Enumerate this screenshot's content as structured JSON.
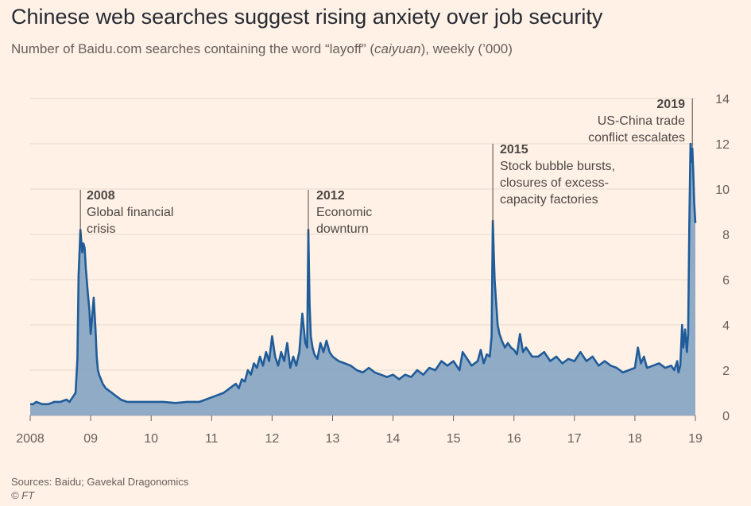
{
  "header": {
    "title": "Chinese web searches suggest rising anxiety over job security",
    "subtitle_pre": "Number of Baidu.com searches containing the word “layoff” (",
    "subtitle_em": "caiyuan",
    "subtitle_post": "), weekly (’000)"
  },
  "footer": {
    "sources": "Sources: Baidu; Gavekal Dragonomics",
    "credit": "© FT"
  },
  "colors": {
    "background": "#fff1e5",
    "line": "#1f5c99",
    "fill": "#8aa6c4",
    "grid": "#e6d9ce"
  },
  "chart_data": {
    "type": "area",
    "title": "Chinese web searches suggest rising anxiety over job security",
    "ylabel": "",
    "xlabel": "",
    "xlim": [
      2008.0,
      2019.0
    ],
    "ylim": [
      0,
      14
    ],
    "y_axis_side": "right",
    "grid": true,
    "x_ticks": [
      {
        "value": 2008,
        "label": "2008"
      },
      {
        "value": 2009,
        "label": "09"
      },
      {
        "value": 2010,
        "label": "10"
      },
      {
        "value": 2011,
        "label": "11"
      },
      {
        "value": 2012,
        "label": "12"
      },
      {
        "value": 2013,
        "label": "13"
      },
      {
        "value": 2014,
        "label": "14"
      },
      {
        "value": 2015,
        "label": "15"
      },
      {
        "value": 2016,
        "label": "16"
      },
      {
        "value": 2017,
        "label": "17"
      },
      {
        "value": 2018,
        "label": "18"
      },
      {
        "value": 2019,
        "label": "19"
      }
    ],
    "y_ticks": [
      {
        "value": 0,
        "label": "0"
      },
      {
        "value": 2,
        "label": "2"
      },
      {
        "value": 4,
        "label": "4"
      },
      {
        "value": 6,
        "label": "6"
      },
      {
        "value": 8,
        "label": "8"
      },
      {
        "value": 10,
        "label": "10"
      },
      {
        "value": 12,
        "label": "12"
      },
      {
        "value": 14,
        "label": "14"
      }
    ],
    "series": [
      {
        "x": [
          2008.0,
          2008.05,
          2008.1,
          2008.2,
          2008.3,
          2008.4,
          2008.5,
          2008.6,
          2008.65,
          2008.7,
          2008.75,
          2008.78,
          2008.8,
          2008.83,
          2008.86,
          2008.88,
          2008.9,
          2008.92,
          2008.95,
          2008.98,
          2009.0,
          2009.02,
          2009.05,
          2009.08,
          2009.1,
          2009.12,
          2009.14,
          2009.17,
          2009.2,
          2009.25,
          2009.3,
          2009.4,
          2009.5,
          2009.6,
          2009.8,
          2010.0,
          2010.2,
          2010.4,
          2010.6,
          2010.8,
          2011.0,
          2011.1,
          2011.2,
          2011.3,
          2011.4,
          2011.45,
          2011.5,
          2011.55,
          2011.6,
          2011.65,
          2011.7,
          2011.75,
          2011.8,
          2011.85,
          2011.9,
          2011.95,
          2012.0,
          2012.05,
          2012.1,
          2012.15,
          2012.2,
          2012.25,
          2012.3,
          2012.35,
          2012.4,
          2012.45,
          2012.5,
          2012.55,
          2012.58,
          2012.6,
          2012.62,
          2012.64,
          2012.67,
          2012.7,
          2012.75,
          2012.8,
          2012.85,
          2012.9,
          2012.95,
          2013.0,
          2013.1,
          2013.2,
          2013.3,
          2013.4,
          2013.5,
          2013.6,
          2013.7,
          2013.8,
          2013.9,
          2014.0,
          2014.1,
          2014.2,
          2014.3,
          2014.4,
          2014.5,
          2014.6,
          2014.7,
          2014.8,
          2014.9,
          2015.0,
          2015.1,
          2015.15,
          2015.2,
          2015.3,
          2015.4,
          2015.45,
          2015.5,
          2015.55,
          2015.6,
          2015.63,
          2015.65,
          2015.68,
          2015.7,
          2015.73,
          2015.76,
          2015.8,
          2015.85,
          2015.9,
          2015.95,
          2016.0,
          2016.05,
          2016.1,
          2016.15,
          2016.2,
          2016.3,
          2016.4,
          2016.5,
          2016.6,
          2016.7,
          2016.8,
          2016.9,
          2017.0,
          2017.1,
          2017.2,
          2017.3,
          2017.4,
          2017.5,
          2017.6,
          2017.7,
          2017.8,
          2017.9,
          2018.0,
          2018.05,
          2018.1,
          2018.15,
          2018.2,
          2018.3,
          2018.4,
          2018.5,
          2018.6,
          2018.65,
          2018.7,
          2018.72,
          2018.75,
          2018.78,
          2018.8,
          2018.83,
          2018.86,
          2018.88,
          2018.9,
          2018.92,
          2018.93,
          2018.95,
          2018.97,
          2018.98,
          2019.0
        ],
        "values": [
          0.5,
          0.5,
          0.6,
          0.5,
          0.5,
          0.6,
          0.6,
          0.7,
          0.6,
          0.8,
          1.0,
          2.5,
          6.2,
          8.2,
          7.2,
          7.6,
          7.4,
          6.5,
          5.5,
          4.6,
          3.6,
          4.2,
          5.2,
          3.8,
          2.6,
          2.0,
          1.8,
          1.6,
          1.4,
          1.2,
          1.1,
          0.9,
          0.7,
          0.6,
          0.6,
          0.6,
          0.6,
          0.55,
          0.6,
          0.6,
          0.8,
          0.9,
          1.0,
          1.2,
          1.4,
          1.2,
          1.6,
          1.5,
          2.0,
          1.8,
          2.3,
          2.1,
          2.6,
          2.2,
          2.8,
          2.4,
          3.5,
          2.6,
          2.2,
          2.8,
          2.4,
          3.2,
          2.1,
          2.6,
          2.2,
          2.8,
          4.5,
          3.2,
          3.0,
          8.2,
          5.0,
          3.5,
          3.0,
          2.7,
          2.5,
          3.2,
          2.8,
          3.3,
          2.8,
          2.6,
          2.4,
          2.3,
          2.2,
          2.0,
          1.9,
          2.1,
          1.9,
          1.8,
          1.7,
          1.8,
          1.6,
          1.8,
          1.7,
          2.0,
          1.8,
          2.1,
          2.0,
          2.4,
          2.2,
          2.4,
          2.0,
          2.8,
          2.6,
          2.2,
          2.4,
          2.9,
          2.3,
          2.7,
          2.6,
          3.5,
          8.6,
          6.0,
          5.2,
          4.0,
          3.6,
          3.3,
          3.0,
          3.2,
          3.0,
          2.9,
          2.7,
          3.6,
          2.8,
          3.0,
          2.6,
          2.6,
          2.8,
          2.4,
          2.6,
          2.3,
          2.5,
          2.4,
          2.8,
          2.4,
          2.6,
          2.2,
          2.4,
          2.2,
          2.1,
          1.9,
          2.0,
          2.1,
          3.0,
          2.3,
          2.6,
          2.1,
          2.2,
          2.3,
          2.1,
          2.2,
          2.0,
          2.4,
          1.9,
          2.2,
          4.0,
          3.0,
          3.8,
          2.8,
          3.6,
          8.5,
          12.0,
          11.2,
          11.8,
          10.4,
          9.4,
          8.5
        ]
      }
    ],
    "annotations": [
      {
        "x": 2008.83,
        "year": "2008",
        "lines": [
          "Global financial",
          "crisis"
        ]
      },
      {
        "x": 2012.6,
        "year": "2012",
        "lines": [
          "Economic",
          "downturn"
        ]
      },
      {
        "x": 2015.65,
        "year": "2015",
        "lines": [
          "Stock bubble bursts,",
          "closures of excess-",
          "capacity factories"
        ]
      },
      {
        "x": 2018.95,
        "year": "2019",
        "lines": [
          "US-China trade",
          "conflict escalates"
        ]
      }
    ]
  }
}
